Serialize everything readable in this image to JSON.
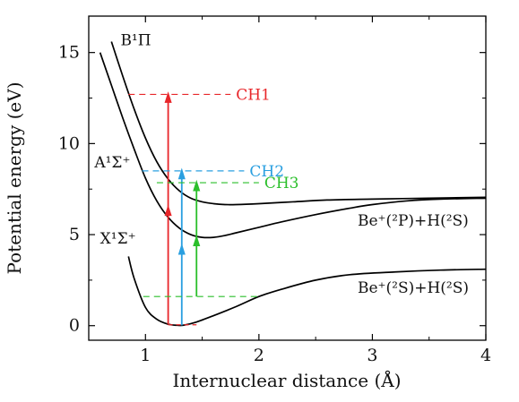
{
  "chart_data": {
    "type": "line",
    "xlabel": "Internuclear distance (Å)",
    "ylabel": "Potential energy (eV)",
    "xlim": [
      0.5,
      4.0
    ],
    "ylim": [
      -0.8,
      17.0
    ],
    "x_ticks": [
      {
        "value": 1,
        "label": "1"
      },
      {
        "value": 2,
        "label": "2"
      },
      {
        "value": 3,
        "label": "3"
      },
      {
        "value": 4,
        "label": "4"
      }
    ],
    "y_ticks": [
      {
        "value": 0,
        "label": "0"
      },
      {
        "value": 5,
        "label": "5"
      },
      {
        "value": 10,
        "label": "10"
      },
      {
        "value": 15,
        "label": "15"
      }
    ],
    "grid": false,
    "series": [
      {
        "name": "X¹Σ⁺",
        "color": "#000000",
        "x": [
          0.85,
          0.9,
          1.0,
          1.1,
          1.2,
          1.28,
          1.34,
          1.45,
          1.6,
          1.8,
          2.0,
          2.2,
          2.5,
          2.8,
          3.2,
          3.6,
          4.0
        ],
        "y": [
          3.8,
          2.6,
          1.0,
          0.35,
          0.08,
          0.02,
          0.03,
          0.2,
          0.55,
          1.05,
          1.6,
          2.0,
          2.5,
          2.8,
          2.95,
          3.05,
          3.1
        ]
      },
      {
        "name": "A¹Σ⁺",
        "color": "#000000",
        "x": [
          0.6,
          0.7,
          0.8,
          0.9,
          1.0,
          1.1,
          1.2,
          1.3,
          1.4,
          1.5,
          1.6,
          1.7,
          1.8,
          2.0,
          2.2,
          2.5,
          2.8,
          3.0,
          3.3,
          3.6,
          4.0
        ],
        "y": [
          15.0,
          13.2,
          11.4,
          9.7,
          8.1,
          6.85,
          5.95,
          5.35,
          5.0,
          4.85,
          4.85,
          4.95,
          5.1,
          5.4,
          5.7,
          6.1,
          6.45,
          6.65,
          6.85,
          6.95,
          7.0
        ]
      },
      {
        "name": "B¹Π",
        "color": "#000000",
        "x": [
          0.7,
          0.8,
          0.9,
          1.0,
          1.1,
          1.2,
          1.3,
          1.4,
          1.5,
          1.6,
          1.7,
          1.8,
          2.0,
          2.3,
          2.6,
          3.0,
          3.5,
          4.0
        ],
        "y": [
          15.6,
          13.7,
          11.9,
          10.3,
          9.0,
          8.05,
          7.4,
          7.0,
          6.8,
          6.7,
          6.65,
          6.65,
          6.7,
          6.8,
          6.9,
          6.95,
          7.0,
          7.05
        ]
      }
    ],
    "transitions": [
      {
        "name": "CH1",
        "color": "#e8262a",
        "x": 1.2,
        "y_from": 0.08,
        "y_to": 12.7
      },
      {
        "name": "CH2",
        "color": "#2a9fe0",
        "x": 1.32,
        "y_from": 0.02,
        "y_to": 8.5
      },
      {
        "name": "CH3",
        "color": "#2bbf2b",
        "x": 1.45,
        "y_from": 1.6,
        "y_to": 7.85
      }
    ],
    "annotations": [
      {
        "text": "B¹Π",
        "x": 0.78,
        "y": 15.4
      },
      {
        "text": "A¹Σ⁺",
        "x": 0.55,
        "y": 8.7
      },
      {
        "text": "X¹Σ⁺",
        "x": 0.6,
        "y": 4.5
      },
      {
        "text": "Be⁺(²P)+H(²S)",
        "x": 2.87,
        "y": 5.5
      },
      {
        "text": "Be⁺(²S)+H(²S)",
        "x": 2.87,
        "y": 1.8
      }
    ]
  }
}
